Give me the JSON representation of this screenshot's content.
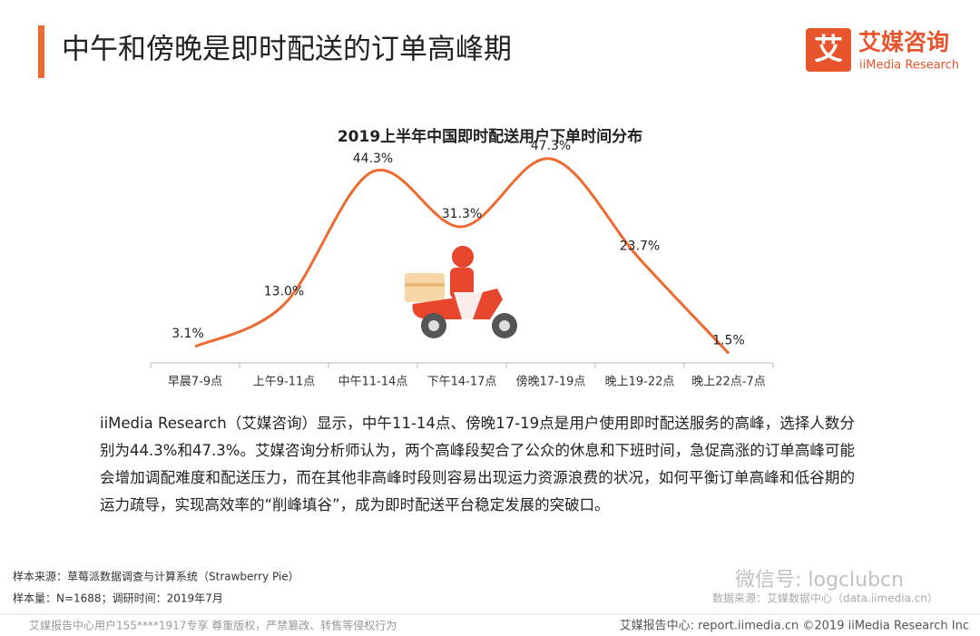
{
  "header": {
    "title": "中午和傍晚是即时配送的订单高峰期",
    "logo": "艾媒咨询",
    "logo_sub": "iiMedia Research"
  },
  "chart_data": {
    "type": "line",
    "title": "2019上半年中国即时配送用户下单时间分布",
    "categories": [
      "早晨7-9点",
      "上午9-11点",
      "中午11-14点",
      "下午14-17点",
      "傍晚17-19点",
      "晚上19-22点",
      "晚上22点-7点"
    ],
    "series": [
      {
        "name": "下单时间分布",
        "color": "#ee6a30",
        "values": [
          3.1,
          13.0,
          44.3,
          31.3,
          47.3,
          23.7,
          1.5
        ],
        "value_labels": [
          "3.1%",
          "13.0%",
          "44.3%",
          "31.3%",
          "47.3%",
          "23.7%",
          "1.5%"
        ]
      }
    ]
  },
  "paragraph": "iiMedia Research（艾媒咨询）显示，中午11-14点、傍晚17-19点是用户使用即时配送服务的高峰，选择人数分别为44.3%和47.3%。艾媒咨询分析师认为，两个高峰段契合了公众的休息和下班时间，急促高涨的订单高峰可能会增加调配难度和配送压力，而在其他非高峰时段则容易出现运力资源浪费的状况，如何平衡订单高峰和低谷期的运力疏导，实现高效率的“削峰填谷”，成为即时配送平台稳定发展的突破口。",
  "sources": [
    "样本来源：草莓派数据调查与计算系统（Strawberry Pie）",
    "样本量：N=1688；调研时间：2019年7月"
  ],
  "data_source": "数据来源：艾媒数据中心（data.iimedia.cn）",
  "watermark": "微信号: logclubcn",
  "footer": {
    "left": "艾媒报告中心用户155****1917专享 尊重版权，严禁篡改、转售等侵权行为",
    "right": "艾媒报告中心: report.iimedia.cn  ©2019  iiMedia Research Inc"
  }
}
